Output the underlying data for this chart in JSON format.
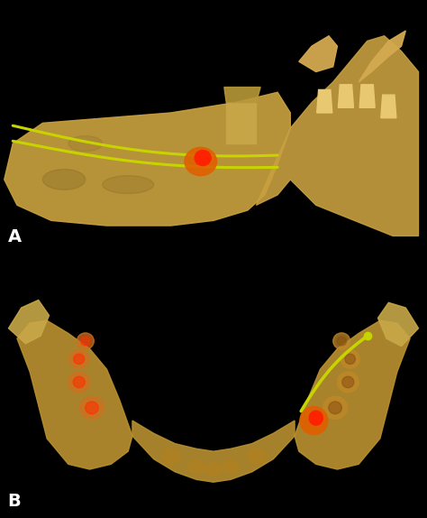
{
  "figure_width": 4.74,
  "figure_height": 5.74,
  "dpi": 100,
  "background_color": "#000000",
  "panel_A": {
    "label": "A",
    "label_color": "#ffffff",
    "label_fontsize": 14,
    "label_bold": true,
    "bg_color": "#000000",
    "jaw_color": "#c8a040",
    "jaw_shadow": "#6a5010",
    "nerve_color": "#c8d400",
    "lesion_color_outer": "#e06000",
    "lesion_color_inner": "#ff2000"
  },
  "panel_B": {
    "label": "B",
    "label_color": "#ffffff",
    "label_fontsize": 14,
    "label_bold": true,
    "bg_color": "#000000",
    "jaw_color": "#b89030",
    "jaw_shadow": "#6a4a10",
    "nerve_color": "#c8d400",
    "lesion_color_outer": "#e06000",
    "lesion_color_inner": "#ff2000"
  },
  "divider_color": "#ffffff",
  "divider_linewidth": 1.5
}
